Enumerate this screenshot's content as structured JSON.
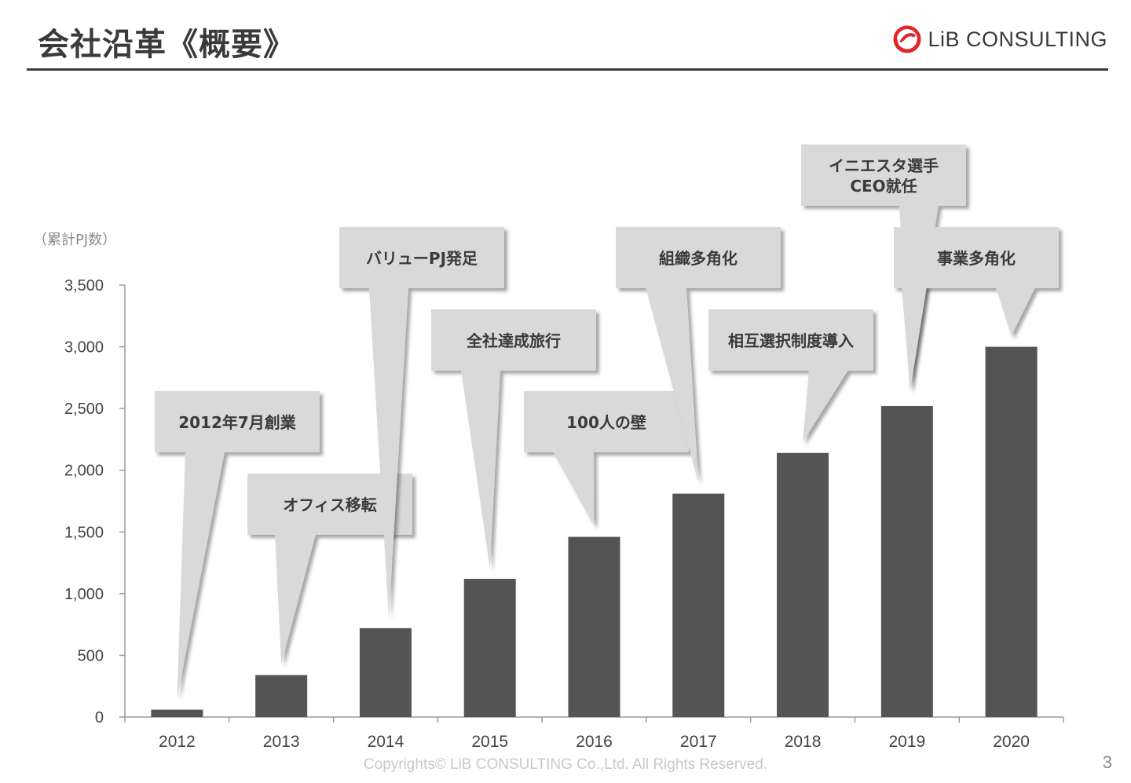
{
  "header": {
    "title": "会社沿革《概要》",
    "logo_text": "LiB CONSULTING",
    "accent_color": "#e0262b"
  },
  "chart_data": {
    "type": "bar",
    "ylabel": "（累計PJ数）",
    "ylim": [
      0,
      3500
    ],
    "yticks": [
      0,
      500,
      1000,
      1500,
      2000,
      2500,
      3000,
      3500
    ],
    "ytick_labels": [
      "0",
      "500",
      "1,000",
      "1,500",
      "2,000",
      "2,500",
      "3,000",
      "3,500"
    ],
    "categories": [
      "2012",
      "2013",
      "2014",
      "2015",
      "2016",
      "2017",
      "2018",
      "2019",
      "2020"
    ],
    "values": [
      60,
      340,
      720,
      1120,
      1460,
      1810,
      2140,
      2520,
      3000
    ],
    "bar_color": "#545454",
    "callout_color": "#d9d9d9",
    "grid": false,
    "annotations": [
      {
        "category": "2012",
        "lines": [
          "2012年7月創業"
        ]
      },
      {
        "category": "2013",
        "lines": [
          "オフィス移転"
        ]
      },
      {
        "category": "2014",
        "lines": [
          "バリューPJ発足"
        ]
      },
      {
        "category": "2015",
        "lines": [
          "全社達成旅行"
        ]
      },
      {
        "category": "2016",
        "lines": [
          "100人の壁"
        ]
      },
      {
        "category": "2017",
        "lines": [
          "組織多角化"
        ]
      },
      {
        "category": "2018",
        "lines": [
          "相互選択制度導入"
        ]
      },
      {
        "category": "2019",
        "lines": [
          "イニエスタ選手",
          "CEO就任"
        ]
      },
      {
        "category": "2020",
        "lines": [
          "事業多角化"
        ]
      }
    ]
  },
  "footer": {
    "copyright": "Copyrights© LiB CONSULTING Co.,Ltd.   All Rights Reserved.",
    "page_number": "3"
  }
}
